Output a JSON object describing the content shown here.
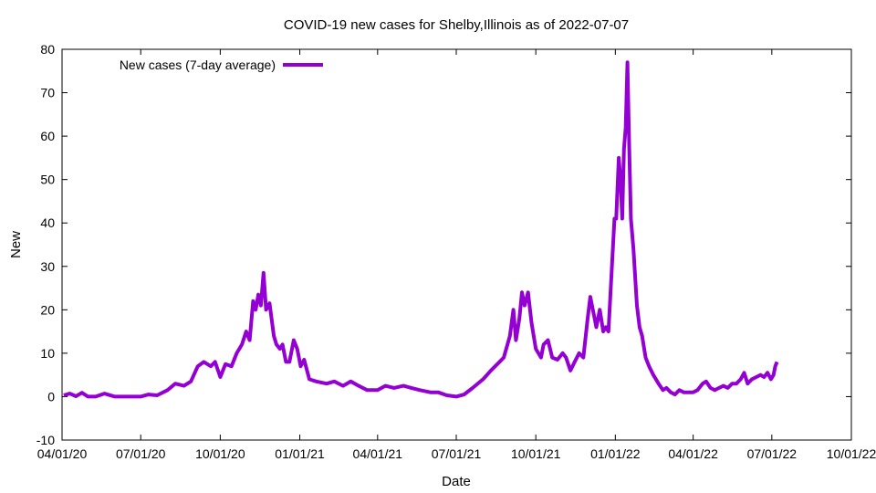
{
  "chart_data": {
    "type": "line",
    "title": "COVID-19 new cases for Shelby,Illinois as of 2022-07-07",
    "xlabel": "Date",
    "ylabel": "New",
    "xlim": [
      "2020-04-01",
      "2022-10-01"
    ],
    "ylim": [
      -10,
      80
    ],
    "x_ticks": [
      "04/01/20",
      "07/01/20",
      "10/01/20",
      "01/01/21",
      "04/01/21",
      "07/01/21",
      "10/01/21",
      "01/01/22",
      "04/01/22",
      "07/01/22",
      "10/01/22"
    ],
    "y_ticks": [
      -10,
      0,
      10,
      20,
      30,
      40,
      50,
      60,
      70,
      80
    ],
    "grid": false,
    "legend_position": "top-left",
    "series_color": "#9400D3",
    "series": [
      {
        "name": "New cases (7-day average)",
        "points": [
          [
            "2020-04-03",
            0.3
          ],
          [
            "2020-04-10",
            0.7
          ],
          [
            "2020-04-17",
            0.1
          ],
          [
            "2020-04-24",
            0.9
          ],
          [
            "2020-05-01",
            0.0
          ],
          [
            "2020-05-10",
            0.0
          ],
          [
            "2020-05-20",
            0.7
          ],
          [
            "2020-06-01",
            0.0
          ],
          [
            "2020-06-15",
            0.0
          ],
          [
            "2020-07-01",
            0.0
          ],
          [
            "2020-07-10",
            0.5
          ],
          [
            "2020-07-20",
            0.3
          ],
          [
            "2020-08-01",
            1.5
          ],
          [
            "2020-08-10",
            3.0
          ],
          [
            "2020-08-20",
            2.5
          ],
          [
            "2020-08-28",
            3.5
          ],
          [
            "2020-09-05",
            7.0
          ],
          [
            "2020-09-12",
            8.0
          ],
          [
            "2020-09-20",
            7.0
          ],
          [
            "2020-09-25",
            8.0
          ],
          [
            "2020-10-01",
            4.5
          ],
          [
            "2020-10-07",
            7.5
          ],
          [
            "2020-10-14",
            7.0
          ],
          [
            "2020-10-20",
            10.0
          ],
          [
            "2020-10-26",
            12.0
          ],
          [
            "2020-10-31",
            15.0
          ],
          [
            "2020-11-04",
            13.0
          ],
          [
            "2020-11-08",
            22.0
          ],
          [
            "2020-11-11",
            20.0
          ],
          [
            "2020-11-14",
            23.5
          ],
          [
            "2020-11-17",
            21.0
          ],
          [
            "2020-11-20",
            28.5
          ],
          [
            "2020-11-23",
            20.0
          ],
          [
            "2020-11-27",
            21.5
          ],
          [
            "2020-12-02",
            14.0
          ],
          [
            "2020-12-05",
            12.0
          ],
          [
            "2020-12-09",
            11.0
          ],
          [
            "2020-12-12",
            12.0
          ],
          [
            "2020-12-16",
            8.0
          ],
          [
            "2020-12-20",
            8.0
          ],
          [
            "2020-12-25",
            13.0
          ],
          [
            "2020-12-29",
            11.0
          ],
          [
            "2021-01-02",
            7.0
          ],
          [
            "2021-01-06",
            8.5
          ],
          [
            "2021-01-12",
            4.0
          ],
          [
            "2021-01-20",
            3.5
          ],
          [
            "2021-02-01",
            3.0
          ],
          [
            "2021-02-10",
            3.5
          ],
          [
            "2021-02-20",
            2.5
          ],
          [
            "2021-03-01",
            3.5
          ],
          [
            "2021-03-10",
            2.5
          ],
          [
            "2021-03-20",
            1.5
          ],
          [
            "2021-04-01",
            1.5
          ],
          [
            "2021-04-10",
            2.5
          ],
          [
            "2021-04-20",
            2.0
          ],
          [
            "2021-05-01",
            2.5
          ],
          [
            "2021-05-10",
            2.0
          ],
          [
            "2021-05-20",
            1.5
          ],
          [
            "2021-06-01",
            1.0
          ],
          [
            "2021-06-10",
            1.0
          ],
          [
            "2021-06-20",
            0.3
          ],
          [
            "2021-07-01",
            0.0
          ],
          [
            "2021-07-10",
            0.5
          ],
          [
            "2021-07-20",
            2.0
          ],
          [
            "2021-08-01",
            4.0
          ],
          [
            "2021-08-10",
            6.0
          ],
          [
            "2021-08-20",
            8.0
          ],
          [
            "2021-08-25",
            9.0
          ],
          [
            "2021-09-01",
            14.0
          ],
          [
            "2021-09-05",
            20.0
          ],
          [
            "2021-09-08",
            13.0
          ],
          [
            "2021-09-12",
            18.0
          ],
          [
            "2021-09-15",
            24.0
          ],
          [
            "2021-09-18",
            21.0
          ],
          [
            "2021-09-22",
            24.0
          ],
          [
            "2021-09-26",
            17.0
          ],
          [
            "2021-10-01",
            11.0
          ],
          [
            "2021-10-07",
            9.0
          ],
          [
            "2021-10-10",
            12.0
          ],
          [
            "2021-10-15",
            13.0
          ],
          [
            "2021-10-20",
            9.0
          ],
          [
            "2021-10-26",
            8.5
          ],
          [
            "2021-11-01",
            10.0
          ],
          [
            "2021-11-05",
            9.0
          ],
          [
            "2021-11-10",
            6.0
          ],
          [
            "2021-11-15",
            8.0
          ],
          [
            "2021-11-20",
            10.0
          ],
          [
            "2021-11-25",
            9.0
          ],
          [
            "2021-11-30",
            18.0
          ],
          [
            "2021-12-03",
            23.0
          ],
          [
            "2021-12-07",
            19.0
          ],
          [
            "2021-12-10",
            16.0
          ],
          [
            "2021-12-14",
            20.0
          ],
          [
            "2021-12-18",
            15.0
          ],
          [
            "2021-12-21",
            16.0
          ],
          [
            "2021-12-24",
            15.0
          ],
          [
            "2021-12-28",
            30.0
          ],
          [
            "2021-12-31",
            41.0
          ],
          [
            "2022-01-02",
            41.0
          ],
          [
            "2022-01-05",
            55.0
          ],
          [
            "2022-01-07",
            50.0
          ],
          [
            "2022-01-09",
            41.0
          ],
          [
            "2022-01-11",
            57.0
          ],
          [
            "2022-01-13",
            62.0
          ],
          [
            "2022-01-15",
            77.0
          ],
          [
            "2022-01-17",
            58.0
          ],
          [
            "2022-01-19",
            41.0
          ],
          [
            "2022-01-22",
            34.0
          ],
          [
            "2022-01-26",
            21.0
          ],
          [
            "2022-01-29",
            16.0
          ],
          [
            "2022-02-01",
            14.0
          ],
          [
            "2022-02-05",
            9.0
          ],
          [
            "2022-02-09",
            7.0
          ],
          [
            "2022-02-14",
            5.0
          ],
          [
            "2022-02-20",
            3.0
          ],
          [
            "2022-02-25",
            1.5
          ],
          [
            "2022-03-01",
            2.0
          ],
          [
            "2022-03-06",
            1.0
          ],
          [
            "2022-03-11",
            0.5
          ],
          [
            "2022-03-16",
            1.5
          ],
          [
            "2022-03-21",
            1.0
          ],
          [
            "2022-03-26",
            1.0
          ],
          [
            "2022-04-01",
            1.0
          ],
          [
            "2022-04-06",
            1.5
          ],
          [
            "2022-04-12",
            3.0
          ],
          [
            "2022-04-16",
            3.5
          ],
          [
            "2022-04-21",
            2.0
          ],
          [
            "2022-04-26",
            1.5
          ],
          [
            "2022-05-01",
            2.0
          ],
          [
            "2022-05-06",
            2.5
          ],
          [
            "2022-05-11",
            2.0
          ],
          [
            "2022-05-16",
            3.0
          ],
          [
            "2022-05-21",
            3.0
          ],
          [
            "2022-05-26",
            4.0
          ],
          [
            "2022-05-30",
            5.5
          ],
          [
            "2022-06-03",
            3.0
          ],
          [
            "2022-06-08",
            4.0
          ],
          [
            "2022-06-13",
            4.5
          ],
          [
            "2022-06-18",
            5.0
          ],
          [
            "2022-06-22",
            4.5
          ],
          [
            "2022-06-26",
            5.5
          ],
          [
            "2022-06-30",
            4.0
          ],
          [
            "2022-07-03",
            5.0
          ],
          [
            "2022-07-05",
            7.0
          ],
          [
            "2022-07-07",
            8.0
          ]
        ]
      }
    ]
  }
}
